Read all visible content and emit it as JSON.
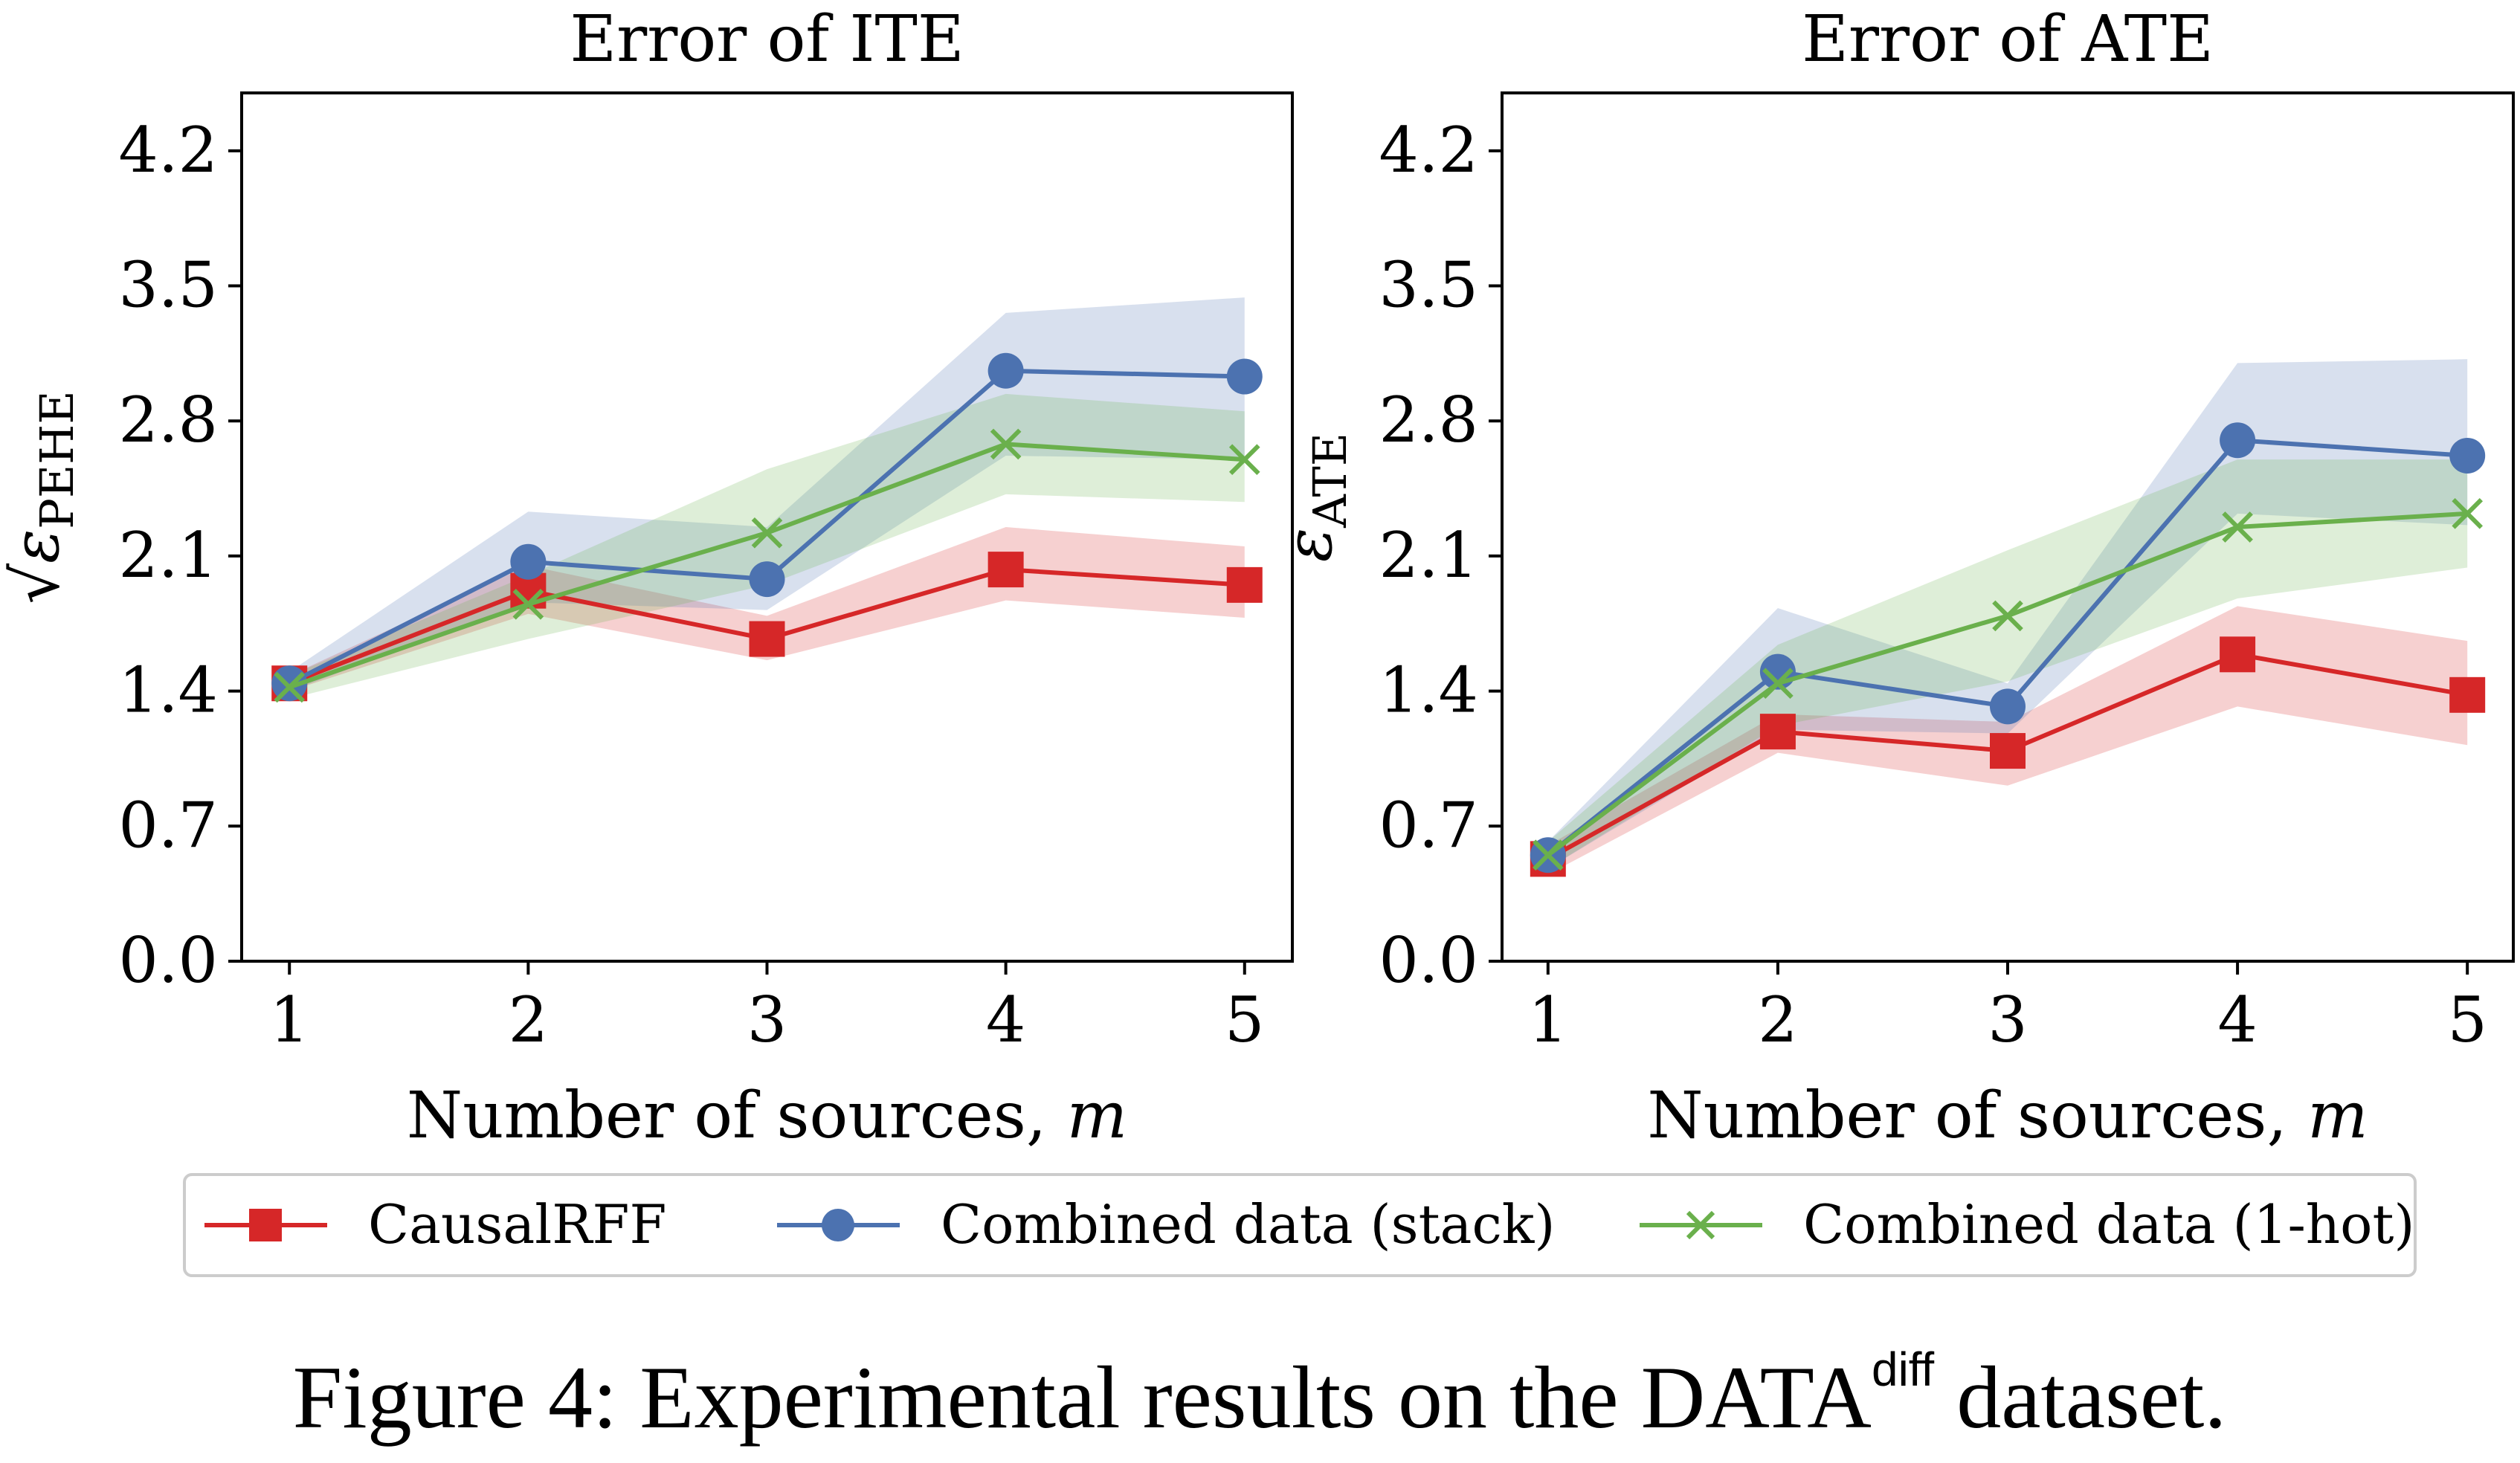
{
  "chart_data": [
    {
      "type": "line",
      "title": "Error of ITE",
      "xlabel": "Number of sources, m",
      "ylabel": "√ε_PEHE",
      "x": [
        1,
        2,
        3,
        4,
        5
      ],
      "xticks": [
        "1",
        "2",
        "3",
        "4",
        "5"
      ],
      "yticks": [
        "0.0",
        "0.7",
        "1.4",
        "2.1",
        "2.8",
        "3.5",
        "4.2"
      ],
      "ylim": [
        0,
        4.5
      ],
      "series": [
        {
          "name": "CausalRFF",
          "color": "#d62728",
          "marker": "square",
          "values": [
            1.44,
            1.92,
            1.67,
            2.03,
            1.95
          ],
          "lower": [
            1.4,
            1.8,
            1.56,
            1.87,
            1.78
          ],
          "upper": [
            1.48,
            2.05,
            1.79,
            2.25,
            2.15
          ]
        },
        {
          "name": "Combined data (stack)",
          "color": "#4c72b0",
          "marker": "circle",
          "values": [
            1.44,
            2.07,
            1.98,
            3.06,
            3.03
          ],
          "lower": [
            1.4,
            1.86,
            1.82,
            2.62,
            2.6
          ],
          "upper": [
            1.5,
            2.33,
            2.25,
            3.36,
            3.44
          ]
        },
        {
          "name": "Combined data (1-hot)",
          "color": "#6ab04c",
          "marker": "x",
          "values": [
            1.42,
            1.85,
            2.22,
            2.68,
            2.6
          ],
          "lower": [
            1.36,
            1.67,
            1.95,
            2.42,
            2.38
          ],
          "upper": [
            1.48,
            2.0,
            2.55,
            2.94,
            2.85
          ]
        }
      ]
    },
    {
      "type": "line",
      "title": "Error of ATE",
      "xlabel": "Number of sources, m",
      "ylabel": "ε_ATE",
      "x": [
        1,
        2,
        3,
        4,
        5
      ],
      "xticks": [
        "1",
        "2",
        "3",
        "4",
        "5"
      ],
      "yticks": [
        "0.0",
        "0.7",
        "1.4",
        "2.1",
        "2.8",
        "3.5",
        "4.2"
      ],
      "ylim": [
        0,
        4.5
      ],
      "series": [
        {
          "name": "CausalRFF",
          "color": "#d62728",
          "marker": "square",
          "values": [
            0.53,
            1.19,
            1.09,
            1.59,
            1.38
          ],
          "lower": [
            0.45,
            1.08,
            0.91,
            1.32,
            1.12
          ],
          "upper": [
            0.6,
            1.28,
            1.24,
            1.84,
            1.66
          ]
        },
        {
          "name": "Combined data (stack)",
          "color": "#4c72b0",
          "marker": "circle",
          "values": [
            0.55,
            1.5,
            1.32,
            2.7,
            2.62
          ],
          "lower": [
            0.48,
            1.2,
            1.18,
            2.32,
            2.26
          ],
          "upper": [
            0.62,
            1.83,
            1.44,
            3.1,
            3.12
          ]
        },
        {
          "name": "Combined data (1-hot)",
          "color": "#6ab04c",
          "marker": "x",
          "values": [
            0.55,
            1.44,
            1.79,
            2.25,
            2.32
          ],
          "lower": [
            0.48,
            1.22,
            1.45,
            1.88,
            2.04
          ],
          "upper": [
            0.62,
            1.64,
            2.13,
            2.6,
            2.6
          ]
        }
      ]
    }
  ],
  "legend": {
    "placement": "bottom-center",
    "items": [
      {
        "label": "CausalRFF",
        "color": "#d62728",
        "marker": "square"
      },
      {
        "label": "Combined data (stack)",
        "color": "#4c72b0",
        "marker": "circle"
      },
      {
        "label": "Combined data (1-hot)",
        "color": "#6ab04c",
        "marker": "x"
      }
    ]
  },
  "caption": {
    "main": "Figure 4: Experimental results on the DATA",
    "superscript": "diff",
    "tail": " dataset."
  }
}
